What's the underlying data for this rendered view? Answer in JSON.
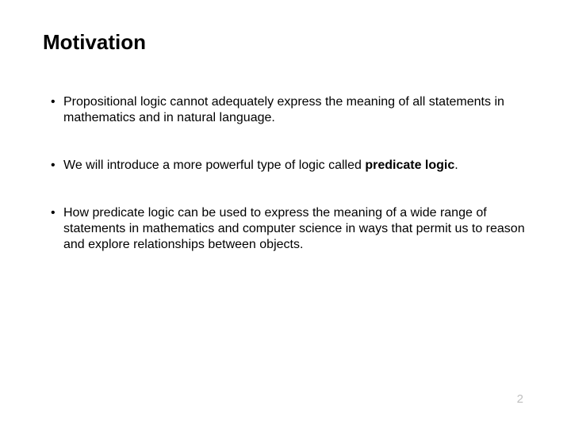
{
  "title": "Motivation",
  "bullets": [
    {
      "pre": "Propositional logic cannot adequately express the meaning of all statements in mathematics and in natural language.",
      "bold": "",
      "post": ""
    },
    {
      "pre": "We will introduce a more powerful type of logic called ",
      "bold": "predicate logic",
      "post": "."
    },
    {
      "pre": "How predicate logic can be used to express the meaning of a wide range of statements in mathematics and computer science in ways that permit us to reason and explore relationships between objects.",
      "bold": "",
      "post": ""
    }
  ],
  "page_number": "2"
}
